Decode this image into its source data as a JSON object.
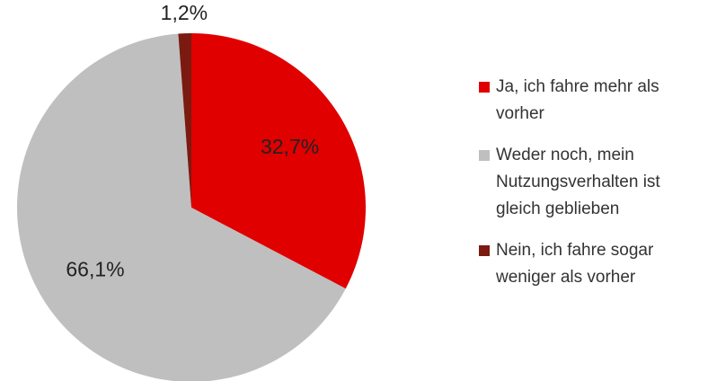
{
  "chart_data": {
    "type": "pie",
    "categories": [
      "Ja, ich fahre mehr als vorher",
      "Weder noch, mein Nutzungsverhalten ist gleich geblieben",
      "Nein, ich fahre sogar weniger als vorher"
    ],
    "values": [
      32.7,
      66.1,
      1.2
    ],
    "value_labels": [
      "32,7%",
      "66,1%",
      "1,2%"
    ],
    "colors": [
      "#e00000",
      "#bfbfbf",
      "#7b1a10"
    ]
  }
}
